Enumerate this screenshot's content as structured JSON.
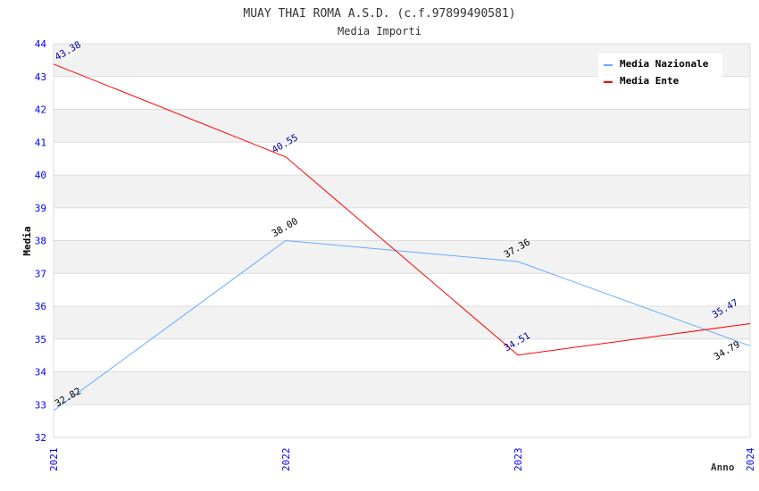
{
  "chart_data": {
    "type": "line",
    "title": "MUAY THAI ROMA A.S.D. (c.f.97899490581)",
    "subtitle": "Media Importi",
    "xlabel": "Anno",
    "ylabel": "Media",
    "categories": [
      "2021",
      "2022",
      "2023",
      "2024"
    ],
    "ylim": [
      32,
      44
    ],
    "yticks": [
      32,
      33,
      34,
      35,
      36,
      37,
      38,
      39,
      40,
      41,
      42,
      43,
      44
    ],
    "legend_position": "top-right",
    "series": [
      {
        "name": "Media Nazionale",
        "color": "#66aaff",
        "label_color": "#000000",
        "values": [
          32.82,
          38.0,
          37.36,
          34.79
        ],
        "labels": [
          "32.82",
          "38.00",
          "37.36",
          "34.79"
        ]
      },
      {
        "name": "Media Ente",
        "color": "#ff0000",
        "label_color": "#000099",
        "values": [
          43.38,
          40.55,
          34.51,
          35.47
        ],
        "labels": [
          "43.38",
          "40.55",
          "34.51",
          "35.47"
        ]
      }
    ]
  }
}
